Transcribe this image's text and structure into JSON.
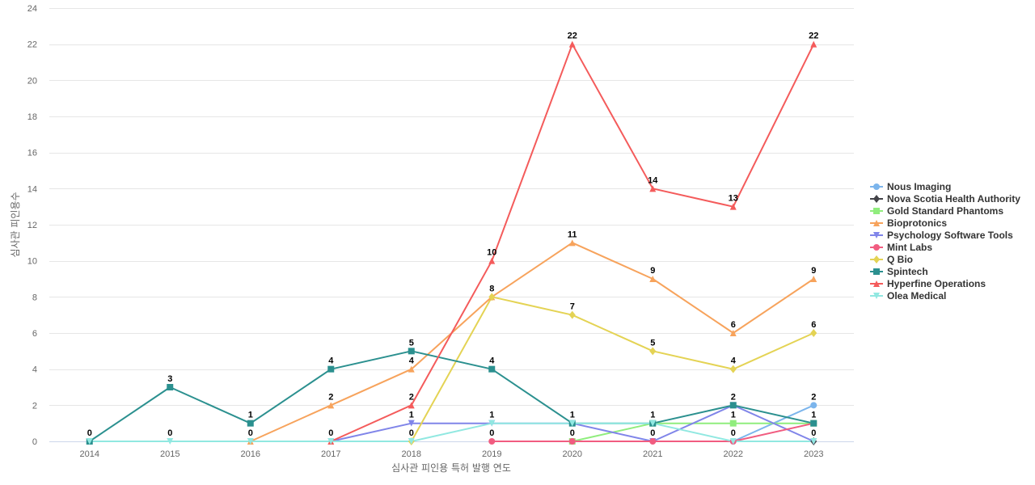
{
  "chart_data": {
    "type": "line",
    "title": "",
    "xlabel": "심사관 피인용 특허 발행 연도",
    "ylabel": "심사관 피인용수",
    "categories": [
      "2014",
      "2015",
      "2016",
      "2017",
      "2018",
      "2019",
      "2020",
      "2021",
      "2022",
      "2023"
    ],
    "ylim": [
      0,
      24
    ],
    "yticks": [
      0,
      2,
      4,
      6,
      8,
      10,
      12,
      14,
      16,
      18,
      20,
      22,
      24
    ],
    "grid": true,
    "legend_position": "right",
    "series": [
      {
        "name": "Nous Imaging",
        "color": "#7cb5ec",
        "marker": "circle",
        "values": [
          null,
          null,
          null,
          null,
          null,
          null,
          null,
          null,
          0,
          2
        ]
      },
      {
        "name": "Nova Scotia Health Authority",
        "color": "#434348",
        "marker": "diamond",
        "values": [
          null,
          null,
          null,
          null,
          null,
          null,
          null,
          null,
          null,
          0
        ]
      },
      {
        "name": "Gold Standard Phantoms",
        "color": "#90ed7d",
        "marker": "square",
        "values": [
          null,
          null,
          null,
          null,
          null,
          null,
          0,
          1,
          1,
          1
        ]
      },
      {
        "name": "Bioprotonics",
        "color": "#f7a35c",
        "marker": "triangle",
        "values": [
          null,
          null,
          0,
          2,
          4,
          8,
          11,
          9,
          6,
          9
        ]
      },
      {
        "name": "Psychology Software Tools",
        "color": "#8085e9",
        "marker": "triangle-down",
        "values": [
          null,
          null,
          null,
          0,
          1,
          1,
          1,
          0,
          2,
          0
        ]
      },
      {
        "name": "Mint Labs",
        "color": "#f15c80",
        "marker": "circle",
        "values": [
          null,
          null,
          null,
          null,
          null,
          0,
          0,
          0,
          0,
          1
        ]
      },
      {
        "name": "Q Bio",
        "color": "#e4d354",
        "marker": "diamond",
        "values": [
          null,
          null,
          null,
          null,
          0,
          8,
          7,
          5,
          4,
          6
        ]
      },
      {
        "name": "Spintech",
        "color": "#2b908f",
        "marker": "square",
        "values": [
          0,
          3,
          1,
          4,
          5,
          4,
          1,
          1,
          2,
          1
        ]
      },
      {
        "name": "Hyperfine Operations",
        "color": "#f45b5b",
        "marker": "triangle",
        "values": [
          null,
          null,
          null,
          0,
          2,
          10,
          22,
          14,
          13,
          22
        ]
      },
      {
        "name": "Olea Medical",
        "color": "#91e8e1",
        "marker": "triangle-down",
        "values": [
          0,
          0,
          0,
          0,
          0,
          1,
          1,
          1,
          0,
          0
        ]
      }
    ],
    "data_labels": [
      {
        "category": "2014",
        "value": 0,
        "text": "0"
      },
      {
        "category": "2015",
        "value": 3,
        "text": "3"
      },
      {
        "category": "2015",
        "value": 0,
        "text": "0"
      },
      {
        "category": "2016",
        "value": 1,
        "text": "1"
      },
      {
        "category": "2016",
        "value": 0,
        "text": "0"
      },
      {
        "category": "2017",
        "value": 4,
        "text": "4"
      },
      {
        "category": "2017",
        "value": 2,
        "text": "2"
      },
      {
        "category": "2017",
        "value": 0,
        "text": "0"
      },
      {
        "category": "2018",
        "value": 5,
        "text": "5"
      },
      {
        "category": "2018",
        "value": 4,
        "text": "4"
      },
      {
        "category": "2018",
        "value": 2,
        "text": "2"
      },
      {
        "category": "2018",
        "value": 1,
        "text": "1"
      },
      {
        "category": "2018",
        "value": 0,
        "text": "0"
      },
      {
        "category": "2019",
        "value": 10,
        "text": "10"
      },
      {
        "category": "2019",
        "value": 8,
        "text": "8"
      },
      {
        "category": "2019",
        "value": 4,
        "text": "4"
      },
      {
        "category": "2019",
        "value": 1,
        "text": "1"
      },
      {
        "category": "2019",
        "value": 0,
        "text": "0"
      },
      {
        "category": "2020",
        "value": 22,
        "text": "22"
      },
      {
        "category": "2020",
        "value": 11,
        "text": "11"
      },
      {
        "category": "2020",
        "value": 7,
        "text": "7"
      },
      {
        "category": "2020",
        "value": 1,
        "text": "1"
      },
      {
        "category": "2020",
        "value": 0,
        "text": "0"
      },
      {
        "category": "2021",
        "value": 14,
        "text": "14"
      },
      {
        "category": "2021",
        "value": 9,
        "text": "9"
      },
      {
        "category": "2021",
        "value": 5,
        "text": "5"
      },
      {
        "category": "2021",
        "value": 1,
        "text": "1"
      },
      {
        "category": "2021",
        "value": 0,
        "text": "0"
      },
      {
        "category": "2022",
        "value": 13,
        "text": "13"
      },
      {
        "category": "2022",
        "value": 6,
        "text": "6"
      },
      {
        "category": "2022",
        "value": 4,
        "text": "4"
      },
      {
        "category": "2022",
        "value": 2,
        "text": "2"
      },
      {
        "category": "2022",
        "value": 1,
        "text": "1"
      },
      {
        "category": "2022",
        "value": 0,
        "text": "0"
      },
      {
        "category": "2023",
        "value": 22,
        "text": "22"
      },
      {
        "category": "2023",
        "value": 9,
        "text": "9"
      },
      {
        "category": "2023",
        "value": 6,
        "text": "6"
      },
      {
        "category": "2023",
        "value": 2,
        "text": "2"
      },
      {
        "category": "2023",
        "value": 1,
        "text": "1"
      },
      {
        "category": "2023",
        "value": 0,
        "text": "0"
      }
    ]
  }
}
